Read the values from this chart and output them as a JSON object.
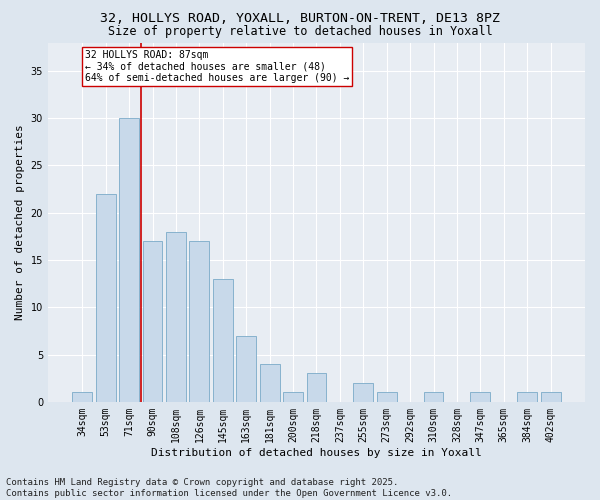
{
  "title_line1": "32, HOLLYS ROAD, YOXALL, BURTON-ON-TRENT, DE13 8PZ",
  "title_line2": "Size of property relative to detached houses in Yoxall",
  "xlabel": "Distribution of detached houses by size in Yoxall",
  "ylabel": "Number of detached properties",
  "categories": [
    "34sqm",
    "53sqm",
    "71sqm",
    "90sqm",
    "108sqm",
    "126sqm",
    "145sqm",
    "163sqm",
    "181sqm",
    "200sqm",
    "218sqm",
    "237sqm",
    "255sqm",
    "273sqm",
    "292sqm",
    "310sqm",
    "328sqm",
    "347sqm",
    "365sqm",
    "384sqm",
    "402sqm"
  ],
  "values": [
    1,
    22,
    30,
    17,
    18,
    17,
    13,
    7,
    4,
    1,
    3,
    0,
    2,
    1,
    0,
    1,
    0,
    1,
    0,
    1,
    1
  ],
  "bar_color": "#c8d9ea",
  "bar_edge_color": "#7aaac8",
  "vline_x_idx": 2,
  "vline_color": "#cc0000",
  "annotation_text": "32 HOLLYS ROAD: 87sqm\n← 34% of detached houses are smaller (48)\n64% of semi-detached houses are larger (90) →",
  "annotation_box_color": "#ffffff",
  "annotation_box_edge": "#cc0000",
  "ylim": [
    0,
    38
  ],
  "yticks": [
    0,
    5,
    10,
    15,
    20,
    25,
    30,
    35
  ],
  "footer_text": "Contains HM Land Registry data © Crown copyright and database right 2025.\nContains public sector information licensed under the Open Government Licence v3.0.",
  "background_color": "#dde6ef",
  "plot_bg_color": "#e8edf3",
  "grid_color": "#ffffff",
  "title_fontsize": 9.5,
  "subtitle_fontsize": 8.5,
  "axis_label_fontsize": 8,
  "tick_fontsize": 7,
  "annotation_fontsize": 7,
  "footer_fontsize": 6.5
}
